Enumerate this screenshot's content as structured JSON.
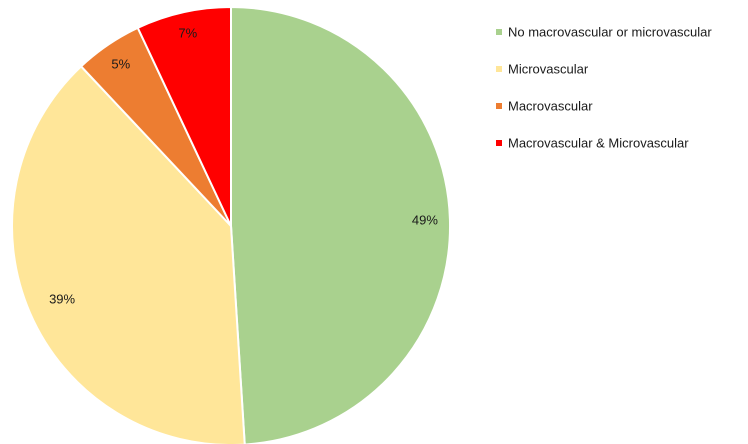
{
  "chart_data": {
    "type": "pie",
    "title": "",
    "categories": [
      "No macrovascular or microvascular",
      "Microvascular",
      "Macrovascular",
      "Macrovascular & Microvascular"
    ],
    "values": [
      49,
      39,
      5,
      7
    ],
    "labels": [
      "49%",
      "39%",
      "5%",
      "7%"
    ],
    "colors": [
      "#a9d18e",
      "#ffe699",
      "#ed7d31",
      "#ff0000"
    ],
    "start_angle_deg": 0,
    "direction": "clockwise",
    "slice_border_color": "#ffffff",
    "legend_position": "right-top"
  }
}
